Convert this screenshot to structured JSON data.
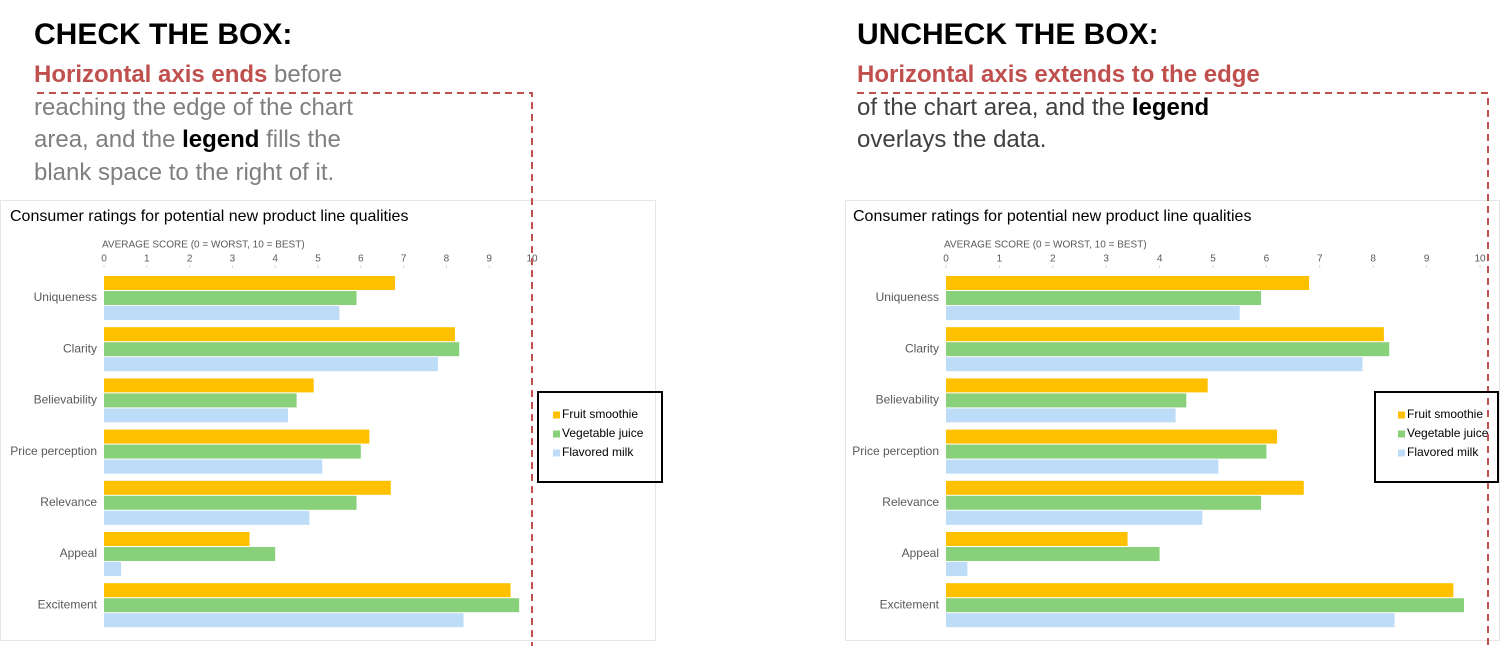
{
  "panels": [
    {
      "heading": "CHECK THE BOX:",
      "description": [
        "Horizontal axis ends",
        " before",
        "reaching the edge of the chart",
        "area, and the ",
        "legend",
        " fills the",
        "blank space to the right of it."
      ]
    },
    {
      "heading": "UNCHECK THE BOX:",
      "description": [
        "Horizontal axis extends to the edge",
        "of the chart area, and the ",
        "legend",
        "overlays the data."
      ]
    }
  ],
  "chart_data": [
    {
      "type": "barh",
      "title": "Consumer ratings for potential new product line qualities",
      "xlabel": "AVERAGE SCORE (0 = WORST, 10 = BEST)",
      "categories": [
        "Uniqueness",
        "Clarity",
        "Believability",
        "Price perception",
        "Relevance",
        "Appeal",
        "Excitement"
      ],
      "series": [
        {
          "name": "Fruit smoothie",
          "color": "#ffc000",
          "values": [
            6.8,
            8.2,
            4.9,
            6.2,
            6.7,
            3.4,
            9.5
          ]
        },
        {
          "name": "Vegetable juice",
          "color": "#88d07a",
          "values": [
            5.9,
            8.3,
            4.5,
            6.0,
            5.9,
            4.0,
            9.7
          ]
        },
        {
          "name": "Flavored milk",
          "color": "#bcdcf8",
          "values": [
            5.5,
            7.8,
            4.3,
            5.1,
            4.8,
            0.4,
            8.4
          ]
        }
      ],
      "xlim": [
        0,
        10
      ],
      "xticks": [
        0,
        1,
        2,
        3,
        4,
        5,
        6,
        7,
        8,
        9,
        10
      ],
      "legend": "right"
    },
    {
      "type": "barh",
      "title": "Consumer ratings for potential new product line qualities",
      "xlabel": "AVERAGE SCORE (0 = WORST, 10 = BEST)",
      "categories": [
        "Uniqueness",
        "Clarity",
        "Believability",
        "Price perception",
        "Relevance",
        "Appeal",
        "Excitement"
      ],
      "series": [
        {
          "name": "Fruit smoothie",
          "color": "#ffc000",
          "values": [
            6.8,
            8.2,
            4.9,
            6.2,
            6.7,
            3.4,
            9.5
          ]
        },
        {
          "name": "Vegetable juice",
          "color": "#88d07a",
          "values": [
            5.9,
            8.3,
            4.5,
            6.0,
            5.9,
            4.0,
            9.7
          ]
        },
        {
          "name": "Flavored milk",
          "color": "#bcdcf8",
          "values": [
            5.5,
            7.8,
            4.3,
            5.1,
            4.8,
            0.4,
            8.4
          ]
        }
      ],
      "xlim": [
        0,
        10
      ],
      "xticks": [
        0,
        1,
        2,
        3,
        4,
        5,
        6,
        7,
        8,
        9,
        10
      ],
      "legend": "right"
    }
  ]
}
